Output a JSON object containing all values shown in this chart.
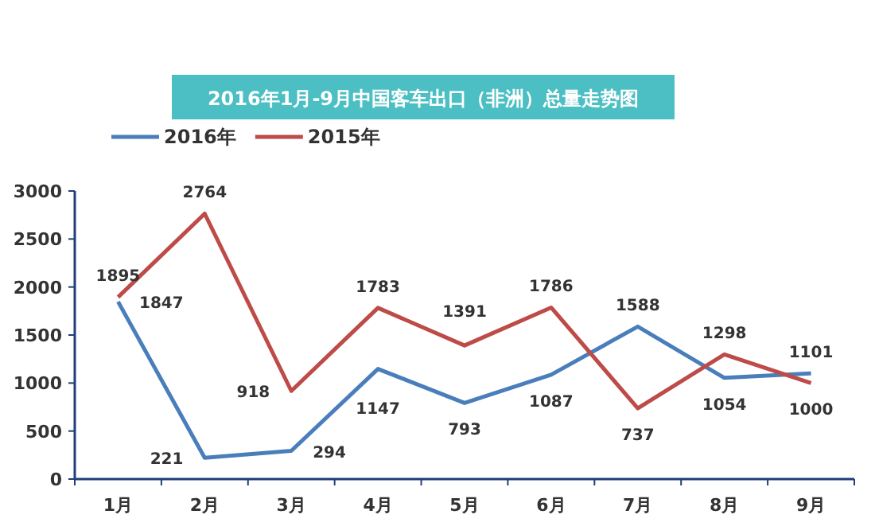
{
  "chart_data": {
    "type": "line",
    "title": "2016年1月-9月中国客车出口（非洲）总量走势图",
    "categories": [
      "1月",
      "2月",
      "3月",
      "4月",
      "5月",
      "6月",
      "7月",
      "8月",
      "9月"
    ],
    "series": [
      {
        "name": "2016年",
        "color": "#4a7ebb",
        "values": [
          1847,
          221,
          294,
          1147,
          793,
          1087,
          1588,
          1054,
          1101
        ]
      },
      {
        "name": "2015年",
        "color": "#be4b48",
        "values": [
          1895,
          2764,
          918,
          1783,
          1391,
          1786,
          737,
          1298,
          1000
        ]
      }
    ],
    "ylim": [
      0,
      3000
    ],
    "yticks": [
      0,
      500,
      1000,
      1500,
      2000,
      2500,
      3000
    ],
    "grid": false,
    "legend": "top left",
    "data_labels": true,
    "marker": "none",
    "line_style": "solid"
  }
}
